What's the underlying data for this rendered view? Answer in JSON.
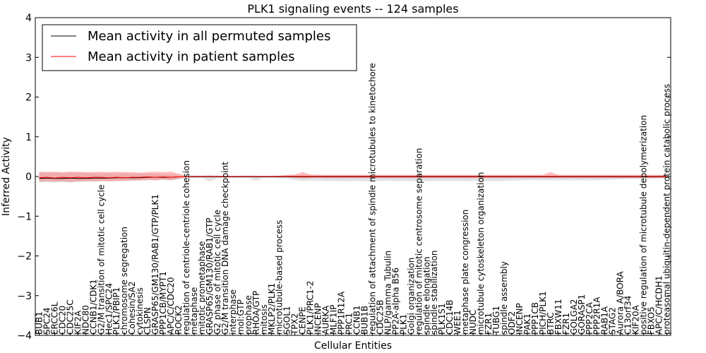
{
  "chart_data": {
    "type": "line",
    "title": "PLK1 signaling events -- 124 samples",
    "xlabel": "Cellular Entities",
    "ylabel": "Inferred Activity",
    "ylim": [
      -4,
      4
    ],
    "yticks": [
      -4,
      -3,
      -2,
      -1,
      0,
      1,
      2,
      3,
      4
    ],
    "ytick_labels": [
      "−4",
      "−3",
      "−2",
      "−1",
      "0",
      "1",
      "2",
      "3",
      "4"
    ],
    "legend_position": "upper-left",
    "categories": [
      "BUB1",
      "SPC24",
      "ERCC6L",
      "CDC20",
      "CDC25C",
      "KIF2A",
      "NDC80",
      "CCNB1/CDK1",
      "G2/M transition of mitotic cell cycle",
      "Hec1/SPC24",
      "PLK1/PBIP1",
      "chromosome segregation",
      "Cohesin/SA2",
      "cytokinesis",
      "CLSPN",
      "GRASP65/GM130/RAB1/GTP/PLK1",
      "PPP1CB/MYPT1",
      "APC/C/CDC20",
      "ROCK2",
      "regulation of centriole-centriole cohesion",
      "metaphase",
      "mitotic prometaphase",
      "GRASP65/GM130/RAB1/GTP",
      "G2 phase of mitotic cell cycle",
      "G2/M transition DNA damage checkpoint",
      "interphase",
      "mol:GTP",
      "prophase",
      "RHOA/GTP",
      "mitosis",
      "MKLP2/PLK1",
      "microtubule-based process",
      "SGOL1",
      "TPX2",
      "CENPE",
      "PLK1/PRC1-2",
      "INCENP",
      "AURKA",
      "MLF1IP",
      "PPP1R12A",
      "PRC1",
      "CCNB1",
      "BUB1B",
      "regulation of attachment of spindle microtubules to kinetochore",
      "CDC25B",
      "NLP/gamma Tubulin",
      "PP2A-alpha B56",
      "PLK1",
      "Golgi organization",
      "regulation of mitotic centrosome separation",
      "spindle elongation",
      "spindle stabilization",
      "PLK1S1",
      "CDC14B",
      "WEE1",
      "metaphase plate congression",
      "NUDC",
      "microtubule cytoskeleton organization",
      "FZR1",
      "TUBG1",
      "spindle assembly",
      "ODF2",
      "INCENP",
      "PAK1",
      "PPP1CB",
      "PICH/PLK1",
      "BTRC",
      "FBXW11",
      "FZR1",
      "GOLGA2",
      "GORASP1",
      "PPP2CA",
      "PPP2R1A",
      "RAB1A",
      "STAG2",
      "Aurora A/BORA",
      "C13orf34",
      "KIF20A",
      "positive regulation of microtubule depolymerization",
      "FBXO5",
      "APC/C/HCDH1",
      "proteasomal ubiquitin-dependent protein catabolic process"
    ],
    "series": [
      {
        "name": "Mean activity in all permuted samples",
        "color": "#000000",
        "values": [
          -0.05,
          -0.04,
          -0.05,
          -0.05,
          -0.04,
          -0.05,
          -0.05,
          -0.04,
          -0.04,
          -0.04,
          -0.03,
          -0.03,
          -0.03,
          -0.03,
          -0.02,
          -0.02,
          -0.02,
          -0.02,
          -0.01,
          -0.01,
          -0.01,
          -0.01,
          -0.01,
          -0.01,
          -0.01,
          -0.01,
          -0.01,
          -0.01,
          -0.01,
          -0.01,
          -0.01,
          -0.01,
          -0.01,
          -0.01,
          -0.01,
          -0.01,
          -0.01,
          -0.01,
          -0.01,
          -0.01,
          -0.01,
          -0.01,
          -0.01,
          -0.01,
          -0.01,
          -0.01,
          -0.01,
          -0.01,
          -0.01,
          -0.01,
          -0.01,
          -0.01,
          -0.01,
          -0.01,
          -0.01,
          -0.01,
          -0.01,
          -0.01,
          -0.01,
          -0.01,
          -0.01,
          -0.01,
          -0.01,
          -0.01,
          -0.01,
          -0.01,
          -0.01,
          -0.01,
          -0.01,
          -0.01,
          -0.01,
          -0.01,
          -0.01,
          -0.01,
          -0.01,
          -0.01,
          -0.01,
          -0.01,
          -0.01,
          -0.01,
          -0.01,
          -0.01
        ],
        "lower": [
          -0.15,
          -0.14,
          -0.15,
          -0.14,
          -0.15,
          -0.14,
          -0.13,
          -0.13,
          -0.12,
          -0.12,
          -0.12,
          -0.11,
          -0.1,
          -0.1,
          -0.1,
          -0.09,
          -0.09,
          -0.09,
          -0.08,
          -0.05,
          -0.04,
          -0.04,
          -0.13,
          -0.04,
          -0.04,
          -0.03,
          -0.04,
          -0.04,
          -0.11,
          -0.03,
          -0.04,
          -0.05,
          -0.06,
          -0.09,
          -0.11,
          -0.1,
          -0.1,
          -0.11,
          -0.11,
          -0.12,
          -0.12,
          -0.11,
          -0.12,
          -0.12,
          -0.11,
          -0.1,
          -0.12,
          -0.11,
          -0.12,
          -0.11,
          -0.12,
          -0.11,
          -0.11,
          -0.11,
          -0.11,
          -0.12,
          -0.11,
          -0.12,
          -0.11,
          -0.12,
          -0.11,
          -0.1,
          -0.1,
          -0.09,
          -0.09,
          -0.1,
          -0.09,
          -0.1,
          -0.09,
          -0.1,
          -0.09,
          -0.1,
          -0.09,
          -0.09,
          -0.08,
          -0.07,
          -0.06,
          -0.06,
          -0.06,
          -0.05,
          -0.05,
          -0.04
        ],
        "upper": [
          0.1,
          0.1,
          0.1,
          0.09,
          0.1,
          0.09,
          0.09,
          0.08,
          0.08,
          0.08,
          0.08,
          0.08,
          0.07,
          0.07,
          0.07,
          0.07,
          0.06,
          0.06,
          0.05,
          0.04,
          0.03,
          0.03,
          0.05,
          0.03,
          0.03,
          0.02,
          0.03,
          0.03,
          0.03,
          0.02,
          0.03,
          0.03,
          0.03,
          0.04,
          0.04,
          0.04,
          0.04,
          0.04,
          0.04,
          0.04,
          0.04,
          0.04,
          0.04,
          0.04,
          0.04,
          0.04,
          0.04,
          0.04,
          0.04,
          0.04,
          0.04,
          0.04,
          0.04,
          0.04,
          0.04,
          0.04,
          0.04,
          0.04,
          0.04,
          0.04,
          0.04,
          0.04,
          0.04,
          0.04,
          0.04,
          0.04,
          0.04,
          0.04,
          0.04,
          0.04,
          0.04,
          0.04,
          0.04,
          0.04,
          0.04,
          0.04,
          0.04,
          0.04,
          0.04,
          0.04,
          0.04,
          0.03
        ]
      },
      {
        "name": "Mean activity in patient samples",
        "color": "#ff0000",
        "values": [
          -0.03,
          -0.02,
          -0.04,
          -0.02,
          -0.03,
          -0.02,
          -0.03,
          -0.02,
          -0.02,
          -0.03,
          -0.02,
          -0.03,
          -0.02,
          -0.02,
          -0.01,
          -0.02,
          -0.01,
          -0.02,
          -0.01,
          -0.01,
          0,
          0,
          0,
          0,
          0,
          0,
          0,
          0,
          0,
          0,
          0,
          0,
          0,
          0,
          0,
          0,
          0,
          0,
          0,
          0,
          0,
          0,
          0,
          0,
          0,
          0,
          0,
          0,
          0,
          0,
          0,
          0,
          0,
          0,
          0,
          0,
          0,
          0,
          0,
          0,
          0,
          0,
          0,
          0,
          0,
          0,
          0,
          0,
          0,
          0,
          0,
          0,
          0,
          0,
          0,
          0,
          0,
          0,
          0,
          0,
          0,
          0
        ],
        "lower": [
          -0.13,
          -0.12,
          -0.13,
          -0.12,
          -0.14,
          -0.12,
          -0.12,
          -0.12,
          -0.11,
          -0.12,
          -0.11,
          -0.11,
          -0.1,
          -0.1,
          -0.08,
          -0.1,
          -0.07,
          -0.1,
          -0.05,
          -0.02,
          -0.01,
          -0.01,
          -0.01,
          -0.01,
          -0.01,
          -0.01,
          -0.01,
          -0.01,
          -0.01,
          -0.01,
          -0.01,
          -0.01,
          -0.02,
          -0.03,
          -0.05,
          -0.04,
          -0.03,
          -0.04,
          -0.04,
          -0.04,
          -0.04,
          -0.04,
          -0.04,
          -0.04,
          -0.04,
          -0.04,
          -0.04,
          -0.04,
          -0.04,
          -0.04,
          -0.04,
          -0.04,
          -0.04,
          -0.04,
          -0.04,
          -0.04,
          -0.04,
          -0.04,
          -0.04,
          -0.04,
          -0.04,
          -0.04,
          -0.04,
          -0.04,
          -0.04,
          -0.04,
          -0.04,
          -0.04,
          -0.04,
          -0.04,
          -0.04,
          -0.04,
          -0.04,
          -0.04,
          -0.04,
          -0.04,
          -0.04,
          -0.04,
          -0.04,
          -0.04,
          -0.04,
          -0.03
        ],
        "upper": [
          0.12,
          0.11,
          0.12,
          0.11,
          0.12,
          0.12,
          0.11,
          0.11,
          0.12,
          0.11,
          0.12,
          0.11,
          0.11,
          0.1,
          0.11,
          0.12,
          0.11,
          0.12,
          0.07,
          0.02,
          0.01,
          0.01,
          0.01,
          0.01,
          0.01,
          0.01,
          0.01,
          0.01,
          0.01,
          0.01,
          0.01,
          0.02,
          0.04,
          0.05,
          0.11,
          0.05,
          0.04,
          0.04,
          0.04,
          0.04,
          0.04,
          0.04,
          0.04,
          0.04,
          0.04,
          0.04,
          0.04,
          0.04,
          0.04,
          0.04,
          0.04,
          0.04,
          0.04,
          0.04,
          0.04,
          0.04,
          0.04,
          0.04,
          0.04,
          0.04,
          0.04,
          0.04,
          0.04,
          0.04,
          0.04,
          0.04,
          0.11,
          0.04,
          0.04,
          0.04,
          0.04,
          0.04,
          0.04,
          0.04,
          0.04,
          0.04,
          0.04,
          0.04,
          0.04,
          0.04,
          0.04,
          0.03
        ]
      }
    ]
  }
}
